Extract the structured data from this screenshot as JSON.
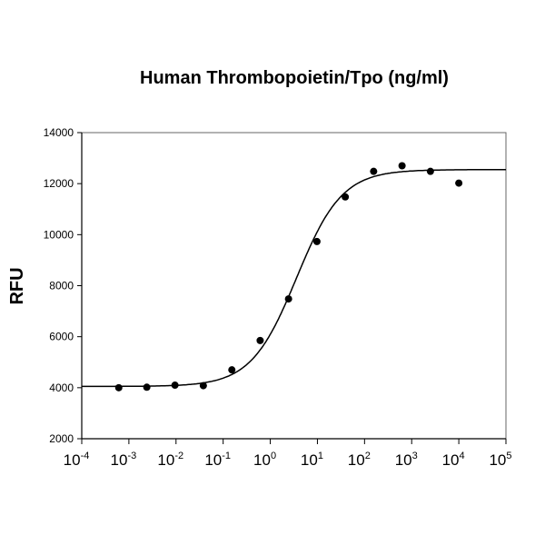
{
  "chart_data": {
    "type": "scatter",
    "title": "Human Thrombopoietin/Tpo (ng/ml)",
    "xlabel": "",
    "ylabel": "RFU",
    "x_scale": "log10",
    "xlim": [
      0.0001,
      100000
    ],
    "ylim": [
      2000,
      14000
    ],
    "x_tick_labels": [
      {
        "base": "10",
        "exp": "-4"
      },
      {
        "base": "10",
        "exp": "-3"
      },
      {
        "base": "10",
        "exp": "-2"
      },
      {
        "base": "10",
        "exp": "-1"
      },
      {
        "base": "10",
        "exp": "0"
      },
      {
        "base": "10",
        "exp": "1"
      },
      {
        "base": "10",
        "exp": "2"
      },
      {
        "base": "10",
        "exp": "3"
      },
      {
        "base": "10",
        "exp": "4"
      },
      {
        "base": "10",
        "exp": "5"
      }
    ],
    "y_ticks": [
      "2000",
      "4000",
      "6000",
      "8000",
      "10000",
      "12000",
      "14000"
    ],
    "grid": false,
    "points": [
      {
        "x": 0.00061,
        "y": 4000
      },
      {
        "x": 0.0024,
        "y": 4020
      },
      {
        "x": 0.0095,
        "y": 4100
      },
      {
        "x": 0.038,
        "y": 4080
      },
      {
        "x": 0.153,
        "y": 4700
      },
      {
        "x": 0.61,
        "y": 5850
      },
      {
        "x": 2.44,
        "y": 7480
      },
      {
        "x": 9.77,
        "y": 9730
      },
      {
        "x": 39,
        "y": 11480
      },
      {
        "x": 156,
        "y": 12480
      },
      {
        "x": 625,
        "y": 12700
      },
      {
        "x": 2500,
        "y": 12480
      },
      {
        "x": 10000,
        "y": 12020
      }
    ],
    "fit": {
      "model": "4PL",
      "bottom": 4050,
      "top": 12550,
      "ec50": 3.6,
      "hill": 0.9
    },
    "colors": {
      "points": "#000000",
      "line": "#000000",
      "axes": "#000000"
    }
  }
}
